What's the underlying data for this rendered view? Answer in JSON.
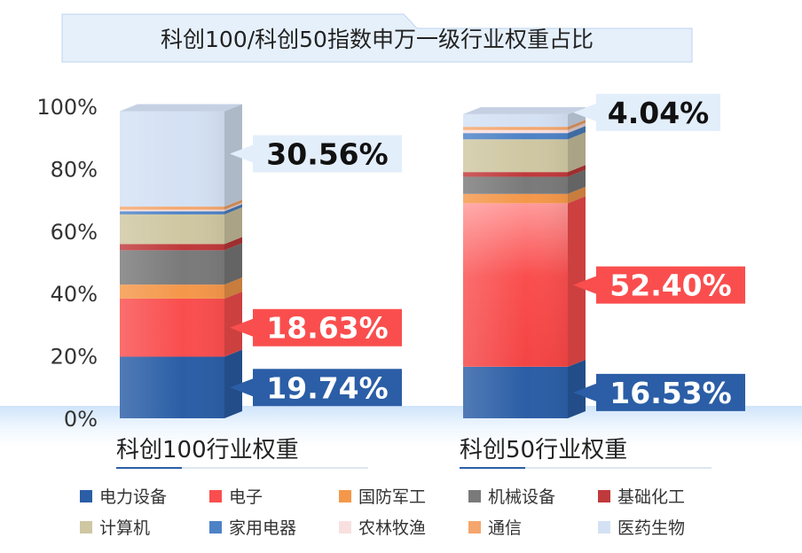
{
  "title": "科创100/科创50指数申万一级行业权重占比",
  "chart_data": {
    "type": "bar",
    "stacked": true,
    "percent": true,
    "title": "科创100/科创50指数申万一级行业权重占比",
    "y_ticks": [
      "0%",
      "20%",
      "40%",
      "60%",
      "80%",
      "100%"
    ],
    "ylim": [
      0,
      100
    ],
    "categories": [
      "科创100行业权重",
      "科创50行业权重"
    ],
    "series": [
      {
        "name": "电力设备",
        "color": "#2b5ea6",
        "values": [
          19.74,
          16.53
        ]
      },
      {
        "name": "电子",
        "color": "#fa4e4e",
        "values": [
          18.63,
          52.4
        ]
      },
      {
        "name": "国防军工",
        "color": "#f4974a",
        "values": [
          4.5,
          3.0
        ]
      },
      {
        "name": "机械设备",
        "color": "#7a7a7a",
        "values": [
          11.0,
          5.5
        ]
      },
      {
        "name": "基础化工",
        "color": "#c0393b",
        "values": [
          2.0,
          1.5
        ]
      },
      {
        "name": "计算机",
        "color": "#cfc7a2",
        "values": [
          9.5,
          10.5
        ]
      },
      {
        "name": "家用电器",
        "color": "#4d82c6",
        "values": [
          1.0,
          2.0
        ]
      },
      {
        "name": "农林牧渔",
        "color": "#f9e0e0",
        "values": [
          0.5,
          1.0
        ]
      },
      {
        "name": "通信",
        "color": "#f4a66c",
        "values": [
          1.0,
          1.0
        ]
      },
      {
        "name": "医药生物",
        "color": "#d4e1f4",
        "values": [
          30.56,
          4.04
        ]
      }
    ],
    "callouts": [
      {
        "bar": 0,
        "series": "医药生物",
        "label": "30.56%",
        "style": "light"
      },
      {
        "bar": 0,
        "series": "电子",
        "label": "18.63%",
        "style": "red"
      },
      {
        "bar": 0,
        "series": "电力设备",
        "label": "19.74%",
        "style": "blue"
      },
      {
        "bar": 1,
        "series": "医药生物",
        "label": "4.04%",
        "style": "light"
      },
      {
        "bar": 1,
        "series": "电子",
        "label": "52.40%",
        "style": "red"
      },
      {
        "bar": 1,
        "series": "电力设备",
        "label": "16.53%",
        "style": "blue"
      }
    ],
    "legend_position": "bottom"
  }
}
